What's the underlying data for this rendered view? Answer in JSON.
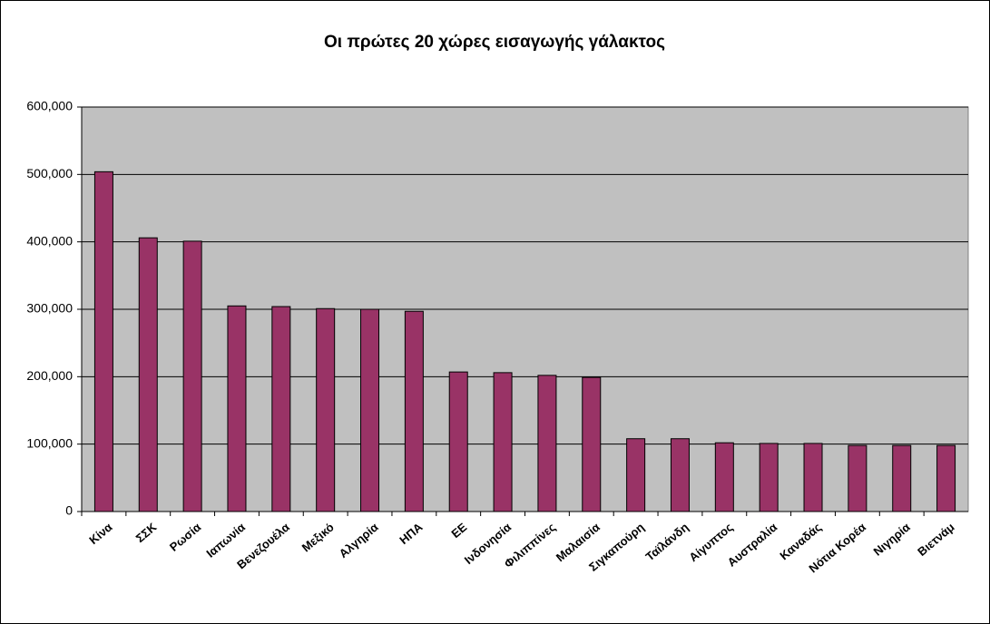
{
  "chart_data": {
    "type": "bar",
    "title": "Οι πρώτες 20 χώρες εισαγωγής γάλακτος",
    "categories": [
      "Κίνα",
      "ΣΣΚ",
      "Ρωσία",
      "Ιαπωνία",
      "Βενεζουέλα",
      "Μεξικό",
      "Αλγηρία",
      "ΗΠΑ",
      "ΕΕ",
      "Ινδονησία",
      "Φιλιππίνες",
      "Μαλαισία",
      "Σιγκαπούρη",
      "Ταϊλάνδη",
      "Αίγυπτος",
      "Αυστραλία",
      "Καναδάς",
      "Νότια Κορέα",
      "Νιγηρία",
      "Βιετνάμ"
    ],
    "values": [
      504000,
      406000,
      401000,
      305000,
      304000,
      301000,
      300000,
      297000,
      207000,
      206000,
      202000,
      199000,
      108000,
      108000,
      102000,
      101000,
      101000,
      98000,
      98000,
      98000
    ],
    "color": "#993366",
    "ylim": [
      0,
      600000
    ],
    "yticks": [
      0,
      {
        "value": 100000,
        "label": "100,000"
      },
      {
        "value": 200000,
        "label": "200,000"
      },
      {
        "value": 300000,
        "label": "300,000"
      },
      {
        "value": 400000,
        "label": "400,000"
      },
      {
        "value": 500000,
        "label": "500,000"
      },
      {
        "value": 600000,
        "label": "600,000"
      }
    ],
    "grid": true
  }
}
